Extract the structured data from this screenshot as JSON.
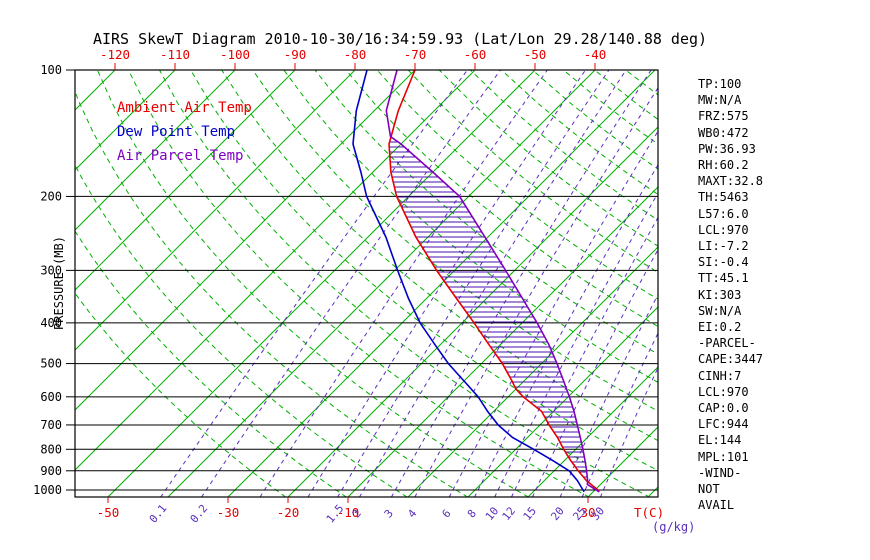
{
  "header": {
    "title": "AIRS SkewT Diagram 2010-10-30/16:34:59.93 (Lat/Lon 29.28/140.88 deg)"
  },
  "axes": {
    "y_label": "PRESSURE (MB)",
    "x_label": "T(C)",
    "x2_label": "(g/kg)",
    "pressure_ticks_mb": [
      100,
      200,
      300,
      400,
      500,
      600,
      700,
      800,
      900,
      1000
    ],
    "top_temp_ticks_c": [
      -120,
      -110,
      -100,
      -90,
      -80,
      -70,
      -60,
      -50,
      -40
    ],
    "bottom_temp_ticks_c": [
      -50,
      -30,
      -20,
      -10,
      30
    ],
    "mixing_ratio_ticks_gkg": [
      0.1,
      0.2,
      1.5,
      2,
      3,
      4,
      6,
      8,
      10,
      12,
      15,
      20,
      25,
      30
    ]
  },
  "legend": [
    {
      "label": "Ambient Air Temp",
      "color": "#e60000"
    },
    {
      "label": "Dew Point Temp",
      "color": "#0000c8"
    },
    {
      "label": "Air Parcel Temp",
      "color": "#8000c0"
    }
  ],
  "stats": [
    "TP:100",
    "MW:N/A",
    "FRZ:575",
    "WB0:472",
    "PW:36.93",
    "RH:60.2",
    "MAXT:32.8",
    "TH:5463",
    "L57:6.0",
    "LCL:970",
    "LI:-7.2",
    "SI:-0.4",
    "TT:45.1",
    "KI:303",
    "SW:N/A",
    "EI:0.2",
    "-PARCEL-",
    "CAPE:3447",
    "CINH:7",
    "LCL:970",
    "CAP:0.0",
    "LFC:944",
    "EL:144",
    "MPL:101",
    "-WIND-",
    "NOT",
    "AVAIL"
  ],
  "colors": {
    "isotherm_green": "#00b000",
    "adiabat_green": "#00b000",
    "mixing_purple": "#5b2fbf",
    "hatch_purple": "#4b0fb0",
    "axis_red": "#e60000",
    "frame_black": "#000000"
  },
  "chart_data": {
    "type": "line",
    "title": "AIRS SkewT Diagram 2010-10-30/16:34:59.93 (Lat/Lon 29.28/140.88 deg)",
    "xlabel": "T(C)",
    "x2label": "(g/kg)",
    "ylabel": "PRESSURE (MB)",
    "y_scale": "log",
    "ylim_mb": [
      1040,
      100
    ],
    "x_skew_deg": 45,
    "legend_position": "top-left",
    "series": [
      {
        "name": "Ambient Air Temp",
        "color": "#e60000",
        "points_mb_c": [
          [
            1010,
            31
          ],
          [
            1000,
            30.5
          ],
          [
            950,
            27
          ],
          [
            900,
            24
          ],
          [
            850,
            21
          ],
          [
            800,
            18
          ],
          [
            750,
            15
          ],
          [
            700,
            11.5
          ],
          [
            650,
            8
          ],
          [
            600,
            2.5
          ],
          [
            575,
            0
          ],
          [
            550,
            -2
          ],
          [
            500,
            -6.5
          ],
          [
            450,
            -12
          ],
          [
            400,
            -18
          ],
          [
            350,
            -25
          ],
          [
            300,
            -33
          ],
          [
            250,
            -42
          ],
          [
            200,
            -52
          ],
          [
            175,
            -57
          ],
          [
            150,
            -62
          ],
          [
            125,
            -66
          ],
          [
            100,
            -70
          ]
        ]
      },
      {
        "name": "Dew Point Temp",
        "color": "#0000c8",
        "points_mb_c": [
          [
            1010,
            28.5
          ],
          [
            1000,
            28
          ],
          [
            950,
            25.5
          ],
          [
            900,
            22.5
          ],
          [
            850,
            18
          ],
          [
            800,
            13
          ],
          [
            750,
            7.5
          ],
          [
            700,
            3
          ],
          [
            650,
            -1
          ],
          [
            600,
            -5
          ],
          [
            550,
            -10
          ],
          [
            500,
            -15.5
          ],
          [
            450,
            -21
          ],
          [
            400,
            -27
          ],
          [
            350,
            -33
          ],
          [
            300,
            -39.5
          ],
          [
            250,
            -47
          ],
          [
            200,
            -57
          ],
          [
            175,
            -62
          ],
          [
            150,
            -68
          ],
          [
            125,
            -73
          ],
          [
            100,
            -78
          ]
        ]
      },
      {
        "name": "Air Parcel Temp",
        "color": "#8000c0",
        "points_mb_c": [
          [
            1010,
            31
          ],
          [
            970,
            27.8
          ],
          [
            950,
            27.2
          ],
          [
            900,
            25.4
          ],
          [
            850,
            23.4
          ],
          [
            800,
            21.2
          ],
          [
            750,
            18.8
          ],
          [
            700,
            16.2
          ],
          [
            650,
            13.4
          ],
          [
            600,
            10.2
          ],
          [
            550,
            6.6
          ],
          [
            500,
            2.6
          ],
          [
            450,
            -2
          ],
          [
            400,
            -7.5
          ],
          [
            350,
            -14
          ],
          [
            300,
            -21.5
          ],
          [
            250,
            -30.5
          ],
          [
            200,
            -41.5
          ],
          [
            175,
            -50
          ],
          [
            150,
            -60
          ],
          [
            144,
            -63
          ],
          [
            125,
            -68
          ],
          [
            100,
            -73
          ]
        ]
      }
    ],
    "grid": {
      "isotherms_c": {
        "from": -160,
        "to": 40,
        "step": 10,
        "style": "solid",
        "color": "#00b000"
      },
      "dry_adiabats_theta_k": {
        "from": 250,
        "to": 460,
        "step": 10,
        "style": "dashed",
        "color": "#00b000"
      },
      "mixing_ratio_lines_gkg": [
        0.1,
        0.2,
        0.5,
        1,
        1.5,
        2,
        3,
        4,
        6,
        8,
        10,
        12,
        15,
        20,
        25,
        30
      ]
    },
    "hatched_region": {
      "between": [
        "Ambient Air Temp",
        "Air Parcel Temp"
      ],
      "from_mb": 944,
      "to_mb": 144,
      "label": "CAPE"
    }
  }
}
